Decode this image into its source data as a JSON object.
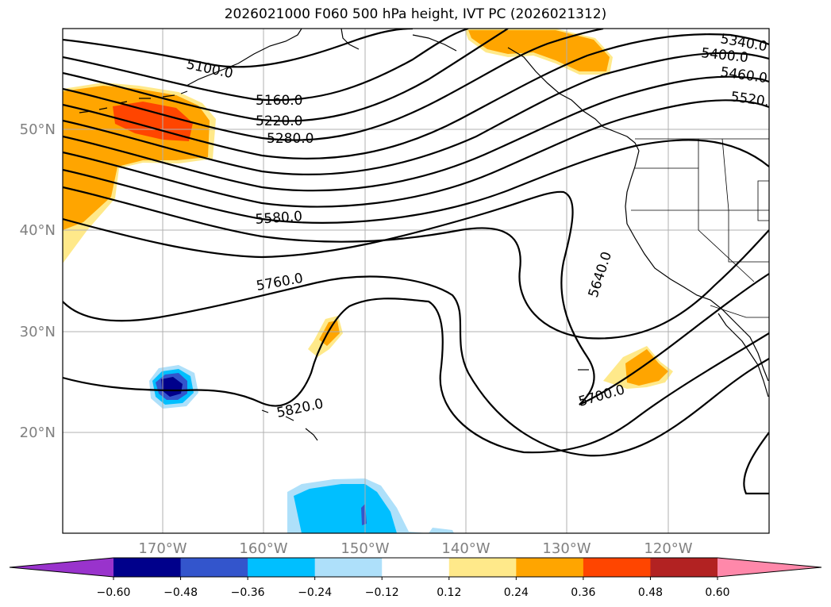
{
  "title": "2026021000 F060 500 hPa height, IVT PC (2026021312)",
  "lat_labels": [
    "50°N",
    "40°N",
    "30°N",
    "20°N"
  ],
  "lon_labels": [
    "170°W",
    "160°W",
    "150°W",
    "140°W",
    "130°W",
    "120°W"
  ],
  "contour_labels": [
    "5100.0",
    "5160.0",
    "5220.0",
    "5280.0",
    "5340.0",
    "5400.0",
    "5460.0",
    "5520.0",
    "5580.0",
    "5640.0",
    "5700.0",
    "5760.0",
    "5820.0"
  ],
  "colorbar": {
    "ticks": [
      "−0.60",
      "−0.48",
      "−0.36",
      "−0.24",
      "−0.12",
      "0.12",
      "0.24",
      "0.36",
      "0.48",
      "0.60"
    ],
    "colors": [
      "#9933cc",
      "#00008b",
      "#3355cc",
      "#00bfff",
      "#aee0fa",
      "#ffffff",
      "#ffe98a",
      "#ffa500",
      "#ff4500",
      "#b22222",
      "#ff88aa"
    ]
  },
  "colors": {
    "grid": "#b0b0b0",
    "tick_label": "#808080",
    "contour": "#000000"
  }
}
